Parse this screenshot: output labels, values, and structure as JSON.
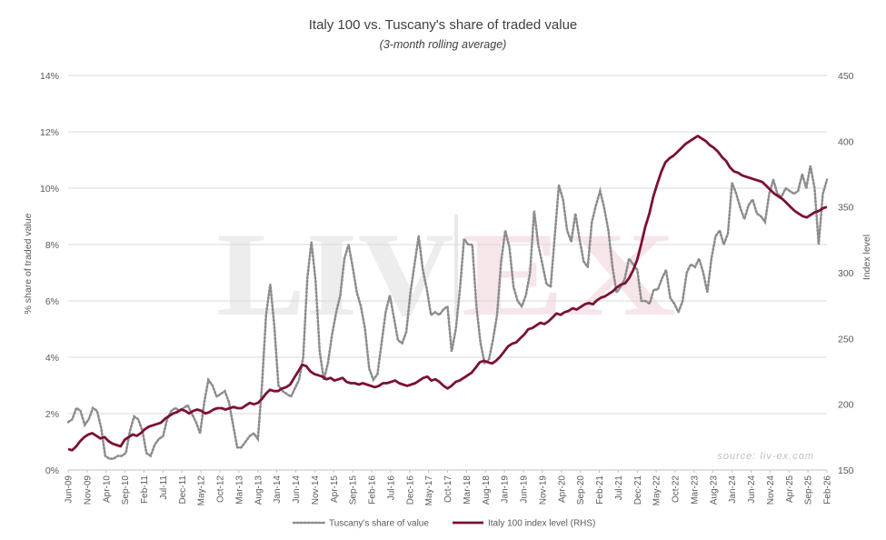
{
  "chart_data": {
    "type": "line",
    "title": "Italy 100  vs. Tuscany's share of traded value",
    "subtitle": "(3-month rolling average)",
    "ylabel": "% share of traded value",
    "y2label": "Index level",
    "ylim": [
      0,
      14
    ],
    "y2lim": [
      150,
      450
    ],
    "yticks": [
      "0%",
      "2%",
      "4%",
      "6%",
      "8%",
      "10%",
      "12%",
      "14%"
    ],
    "y2ticks": [
      "150",
      "200",
      "250",
      "300",
      "350",
      "400",
      "450"
    ],
    "xticks": [
      "Jun-09",
      "Nov-09",
      "Apr-10",
      "Sep-10",
      "Feb-11",
      "Jul-11",
      "Dec-11",
      "May-12",
      "Oct-12",
      "Mar-13",
      "Aug-13",
      "Jan-14",
      "Jun-14",
      "Nov-14",
      "Apr-15",
      "Sep-15",
      "Feb-16",
      "Jul-16",
      "Dec-16",
      "May-17",
      "Oct-17",
      "Mar-18",
      "Aug-18",
      "Jan-19",
      "Jun-19",
      "Nov-19",
      "Apr-20",
      "Sep-20",
      "Feb-21",
      "Jul-21",
      "Dec-21",
      "May-22",
      "Oct-22",
      "Mar-23",
      "Aug-23",
      "Jan-24",
      "Jun-24",
      "Nov-24",
      "Apr-25",
      "Sep-25",
      "Feb-26"
    ],
    "grid": "horizontal",
    "legend": "bottom",
    "source": "source: liv-ex.com",
    "watermark": "LIV-EX",
    "series": [
      {
        "name": "Tuscany's share of value",
        "axis": "left",
        "color": "#8c8c8c",
        "style": "dotted",
        "values": [
          1.7,
          1.8,
          2.2,
          2.1,
          1.6,
          1.8,
          2.2,
          2.1,
          1.5,
          0.5,
          0.4,
          0.4,
          0.5,
          0.5,
          0.6,
          1.4,
          1.9,
          1.8,
          1.4,
          0.6,
          0.5,
          0.9,
          1.1,
          1.2,
          1.8,
          2.1,
          2.2,
          2.1,
          2.2,
          2.3,
          2.0,
          1.7,
          1.3,
          2.4,
          3.2,
          3.0,
          2.6,
          2.7,
          2.8,
          2.4,
          1.6,
          0.8,
          0.8,
          1.0,
          1.2,
          1.3,
          1.1,
          3.0,
          5.5,
          6.6,
          5.1,
          3.0,
          2.8,
          2.7,
          2.6,
          2.9,
          3.2,
          4.0,
          6.8,
          8.1,
          6.7,
          4.2,
          3.2,
          3.8,
          4.8,
          5.6,
          6.2,
          7.5,
          8.0,
          7.2,
          6.3,
          5.8,
          5.0,
          3.6,
          3.2,
          3.4,
          4.5,
          5.6,
          6.2,
          5.4,
          4.6,
          4.5,
          4.9,
          6.3,
          7.3,
          8.3,
          7.1,
          6.4,
          5.5,
          5.6,
          5.5,
          5.7,
          5.8,
          4.2,
          5.0,
          6.4,
          8.2,
          8.0,
          8.0,
          5.8,
          4.5,
          3.8,
          3.9,
          4.6,
          5.5,
          7.4,
          8.5,
          7.9,
          6.5,
          6.0,
          5.8,
          6.2,
          7.0,
          9.2,
          8.0,
          7.3,
          6.6,
          6.5,
          8.3,
          10.1,
          9.6,
          8.5,
          8.1,
          9.1,
          8.2,
          7.4,
          7.2,
          8.8,
          9.4,
          9.9,
          9.3,
          8.5,
          7.2,
          6.3,
          6.5,
          6.8,
          7.5,
          7.3,
          7.1,
          6.0,
          6.0,
          5.9,
          6.4,
          6.4,
          6.8,
          7.1,
          6.1,
          5.9,
          5.6,
          6.0,
          7.0,
          7.3,
          7.2,
          7.5,
          7.0,
          6.3,
          7.5,
          8.3,
          8.5,
          8.0,
          8.4,
          10.2,
          9.8,
          9.3,
          8.9,
          9.4,
          9.6,
          9.1,
          9.0,
          8.8,
          9.8,
          10.3,
          9.8,
          9.7,
          10.0,
          9.9,
          9.8,
          9.9,
          10.5,
          10.0,
          10.8,
          10.0,
          8.0,
          9.8,
          10.3
        ],
        "_note_": null
      },
      {
        "name": "Italy 100 index level (RHS)",
        "axis": "right",
        "color": "#7b1130",
        "style": "solid",
        "values": [
          166,
          165,
          168,
          172,
          175,
          177,
          178,
          176,
          174,
          175,
          172,
          170,
          169,
          168,
          173,
          175,
          177,
          176,
          178,
          181,
          183,
          184,
          185,
          186,
          189,
          191,
          193,
          194,
          196,
          195,
          193,
          195,
          196,
          195,
          193,
          194,
          196,
          197,
          197,
          196,
          197,
          198,
          197,
          197,
          199,
          201,
          200,
          201,
          204,
          208,
          211,
          210,
          210,
          212,
          213,
          215,
          220,
          225,
          230,
          229,
          225,
          223,
          222,
          221,
          219,
          220,
          218,
          219,
          220,
          217,
          216,
          216,
          215,
          216,
          215,
          214,
          213,
          214,
          216,
          216,
          217,
          218,
          216,
          215,
          214,
          215,
          216,
          218,
          220,
          221,
          218,
          219,
          217,
          214,
          212,
          214,
          217,
          218,
          220,
          222,
          224,
          228,
          232,
          233,
          232,
          231,
          233,
          236,
          240,
          244,
          246,
          247,
          250,
          253,
          257,
          258,
          260,
          262,
          261,
          263,
          266,
          269,
          268,
          270,
          271,
          273,
          272,
          274,
          276,
          277,
          276,
          279,
          281,
          282,
          284,
          286,
          289,
          291,
          292,
          296,
          302,
          310,
          322,
          335,
          345,
          358,
          368,
          377,
          384,
          387,
          389,
          392,
          395,
          398,
          400,
          402,
          404,
          402,
          400,
          397,
          395,
          392,
          388,
          385,
          380,
          377,
          376,
          374,
          373,
          372,
          371,
          370,
          369,
          366,
          363,
          360,
          358,
          356,
          353,
          350,
          347,
          345,
          343,
          342,
          344,
          346,
          347,
          349,
          350
        ],
        "_note_": null
      }
    ]
  }
}
